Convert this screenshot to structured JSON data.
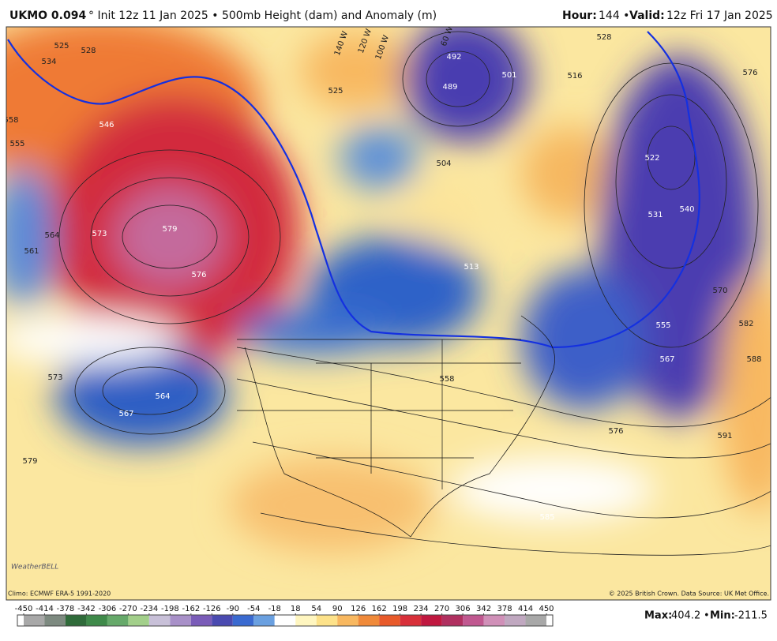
{
  "header": {
    "model": "UKMO 0.094",
    "title": "° Init 12z 11 Jan 2025 • 500mb Height (dam) and Anomaly (m)",
    "hour_label": "Hour:",
    "hour": "144 •",
    "valid_label": "Valid:",
    "valid": "12z Fri 17 Jan 2025"
  },
  "map": {
    "contour_labels": [
      534,
      525,
      528,
      546,
      555,
      558,
      564,
      561,
      573,
      579,
      576,
      573,
      564,
      567,
      579,
      525,
      489,
      492,
      501,
      516,
      528,
      504,
      513,
      522,
      531,
      540,
      555,
      567,
      570,
      582,
      588,
      591,
      576,
      585,
      558,
      576
    ],
    "longitude_labels": [
      "140 W",
      "120 W",
      "100 W",
      "60 W"
    ],
    "logo": "WeatherBELL"
  },
  "footer": {
    "climo": "Climo: ECMWF ERA-5 1991-2020",
    "credit": "© 2025 British Crown. Data Source: UK Met Office."
  },
  "colorbar": {
    "ticks": [
      -450,
      -414,
      -378,
      -342,
      -306,
      -270,
      -234,
      -198,
      -162,
      -126,
      -90,
      -54,
      -18,
      18,
      54,
      90,
      126,
      162,
      198,
      234,
      270,
      306,
      342,
      378,
      414,
      450
    ],
    "colors": [
      "#a8a8a8",
      "#7d8a80",
      "#2f6b3a",
      "#3f8a4a",
      "#66a96a",
      "#a2cf8a",
      "#c8c0d8",
      "#a890c8",
      "#7a5cb8",
      "#4a4ab0",
      "#3a6ad0",
      "#6aa0e0",
      "#ffffff",
      "#fff6c0",
      "#fde28a",
      "#f8b860",
      "#f08a3a",
      "#e85a2a",
      "#d8303a",
      "#c01840",
      "#b03060",
      "#c05890",
      "#d090b8",
      "#c0a8c0",
      "#a8a8a8"
    ]
  },
  "stats": {
    "max_label": "Max:",
    "max": 404.2,
    "sep": "•",
    "min_label": "Min:",
    "min": -211.5
  }
}
